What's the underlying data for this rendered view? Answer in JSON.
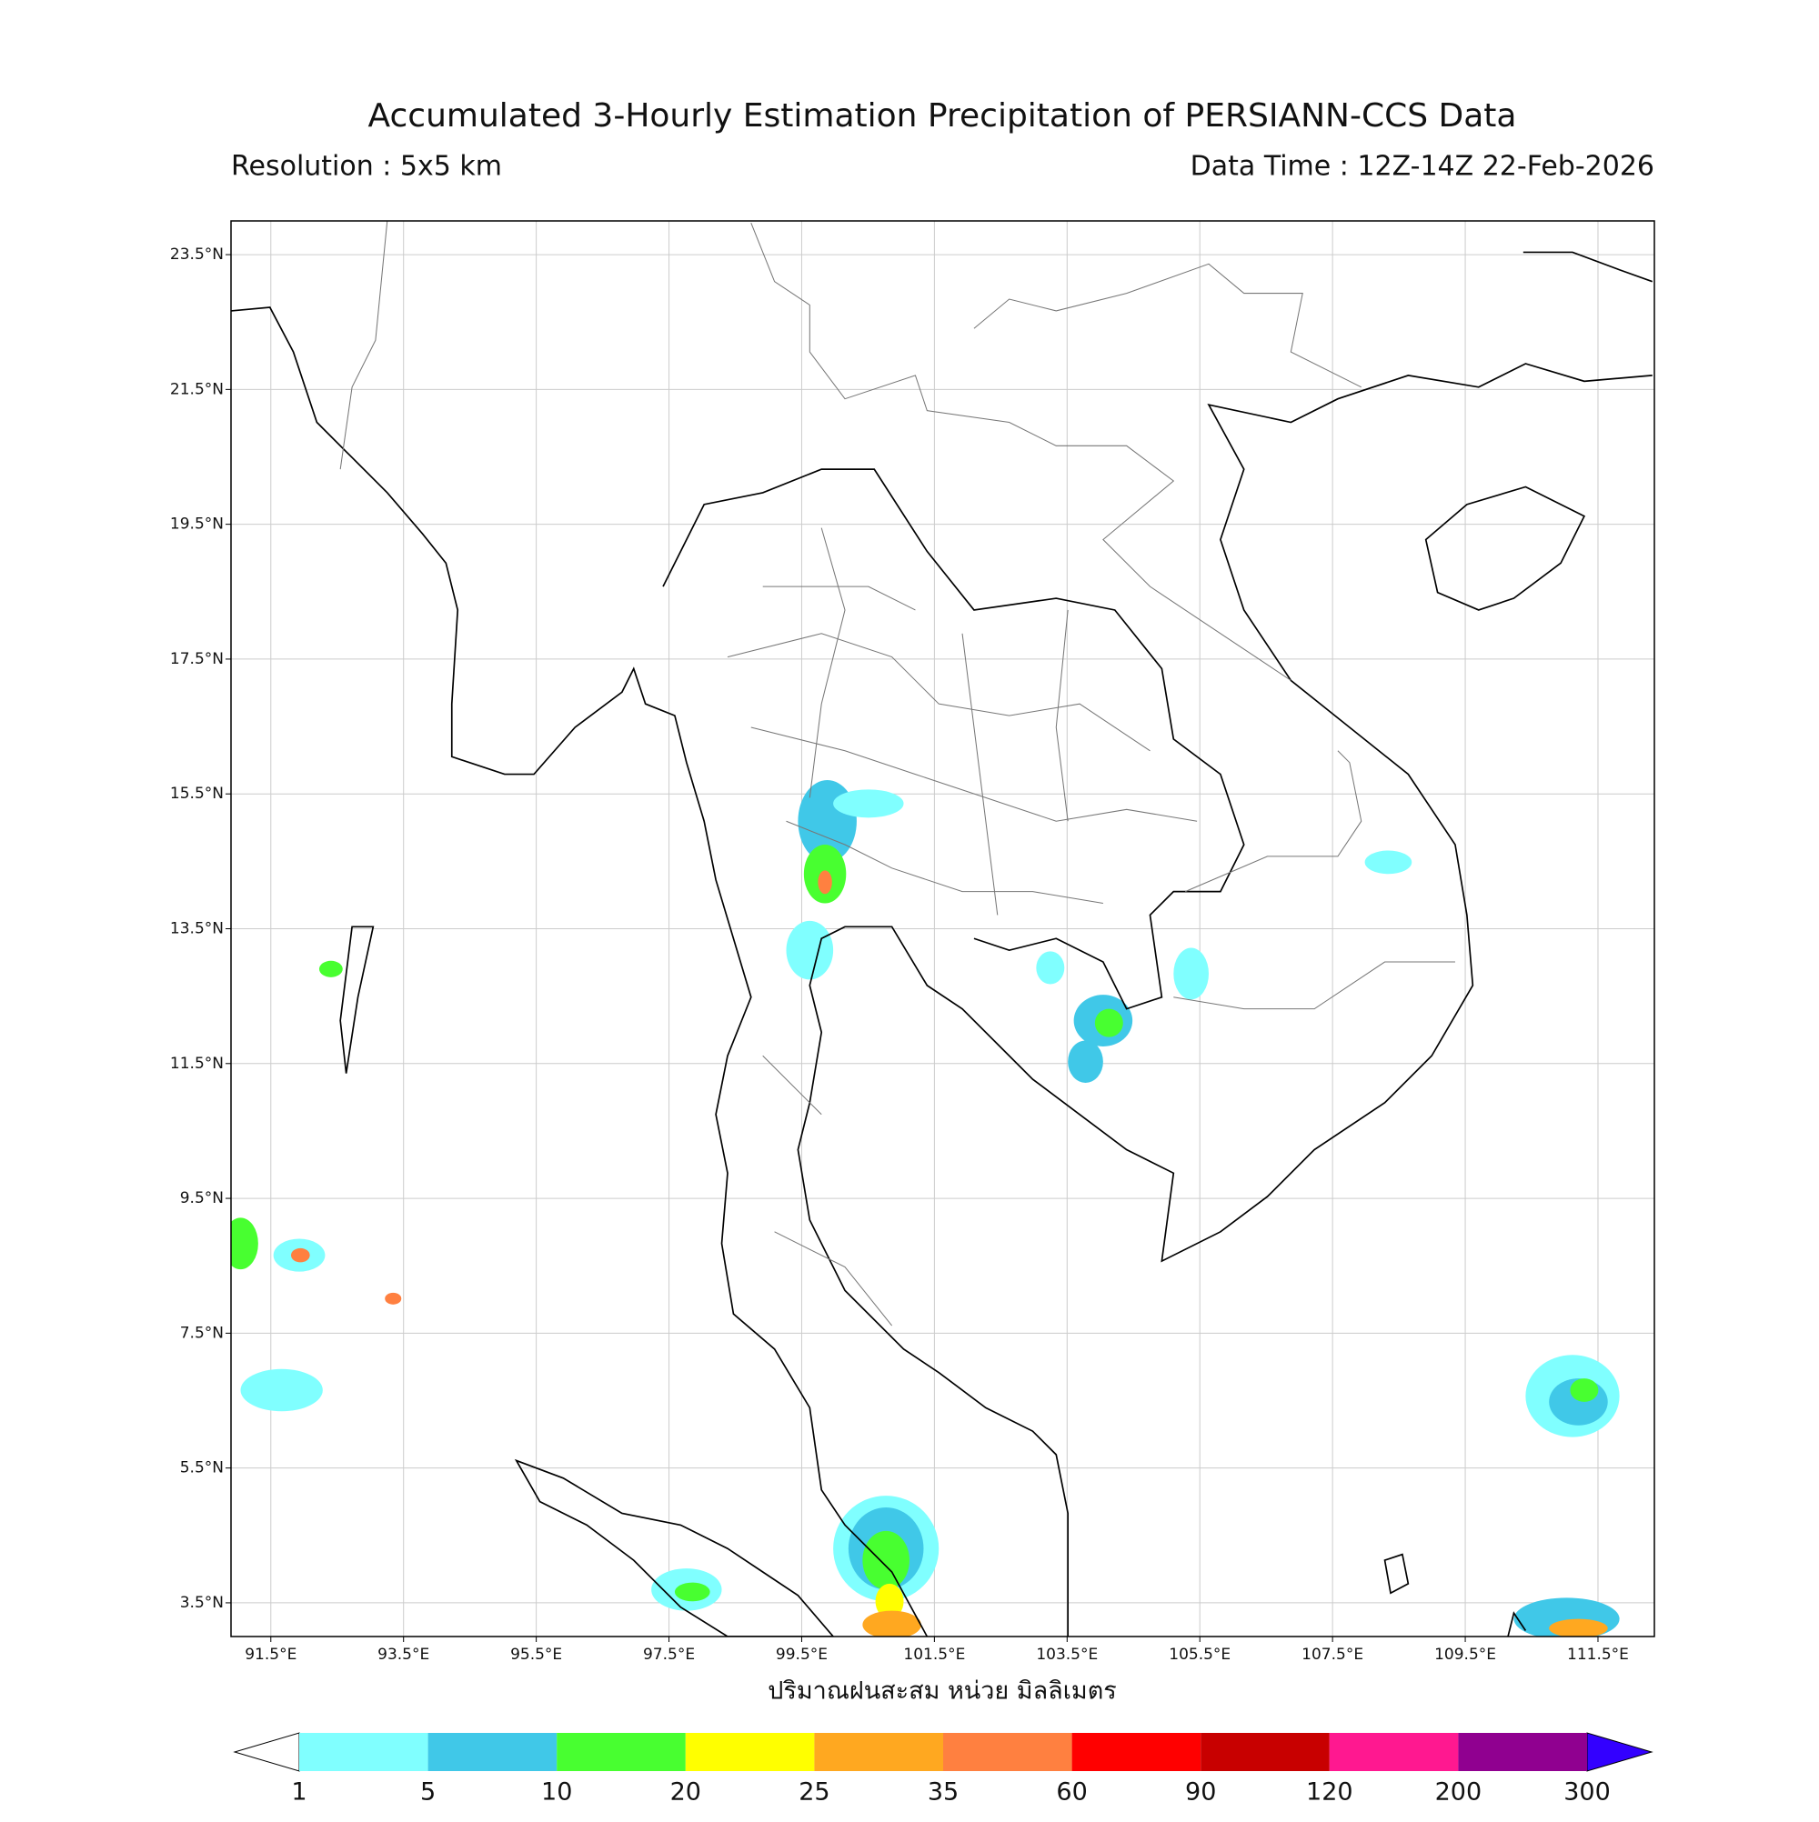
{
  "title": "Accumulated 3-Hourly Estimation Precipitation of PERSIANN-CCS Data",
  "resolution": "Resolution : 5x5 km",
  "data_time": "Data Time : 12Z-14Z 22-Feb-2026",
  "map": {
    "xlim": [
      90.9,
      112.35
    ],
    "ylim": [
      3.0,
      24.0
    ],
    "grid": true,
    "xticks": [
      {
        "value": 91.5,
        "label": "91.5°E"
      },
      {
        "value": 93.5,
        "label": "93.5°E"
      },
      {
        "value": 95.5,
        "label": "95.5°E"
      },
      {
        "value": 97.5,
        "label": "97.5°E"
      },
      {
        "value": 99.5,
        "label": "99.5°E"
      },
      {
        "value": 101.5,
        "label": "101.5°E"
      },
      {
        "value": 103.5,
        "label": "103.5°E"
      },
      {
        "value": 105.5,
        "label": "105.5°E"
      },
      {
        "value": 107.5,
        "label": "107.5°E"
      },
      {
        "value": 109.5,
        "label": "109.5°E"
      },
      {
        "value": 111.5,
        "label": "111.5°E"
      }
    ],
    "yticks": [
      {
        "value": 23.5,
        "label": "23.5°N"
      },
      {
        "value": 21.5,
        "label": "21.5°N"
      },
      {
        "value": 19.5,
        "label": "19.5°N"
      },
      {
        "value": 17.5,
        "label": "17.5°N"
      },
      {
        "value": 15.5,
        "label": "15.5°N"
      },
      {
        "value": 13.5,
        "label": "13.5°N"
      },
      {
        "value": 11.5,
        "label": "11.5°N"
      },
      {
        "value": 9.5,
        "label": "9.5°N"
      },
      {
        "value": 7.5,
        "label": "7.5°N"
      },
      {
        "value": 5.5,
        "label": "5.5°N"
      },
      {
        "value": 3.5,
        "label": "3.5°N"
      }
    ]
  },
  "colorbar": {
    "label": "ปริมาณฝนสะสม หน่วย มิลลิเมตร",
    "levels": [
      1,
      5,
      10,
      20,
      25,
      35,
      60,
      90,
      120,
      200,
      300
    ],
    "colors": [
      "#80ffff",
      "#40c8e8",
      "#48ff30",
      "#ffff00",
      "#ffa820",
      "#ff8040",
      "#ff0000",
      "#c80000",
      "#ff1890",
      "#900090"
    ],
    "under_color": "#ffffff",
    "over_color": "#3300ff"
  }
}
